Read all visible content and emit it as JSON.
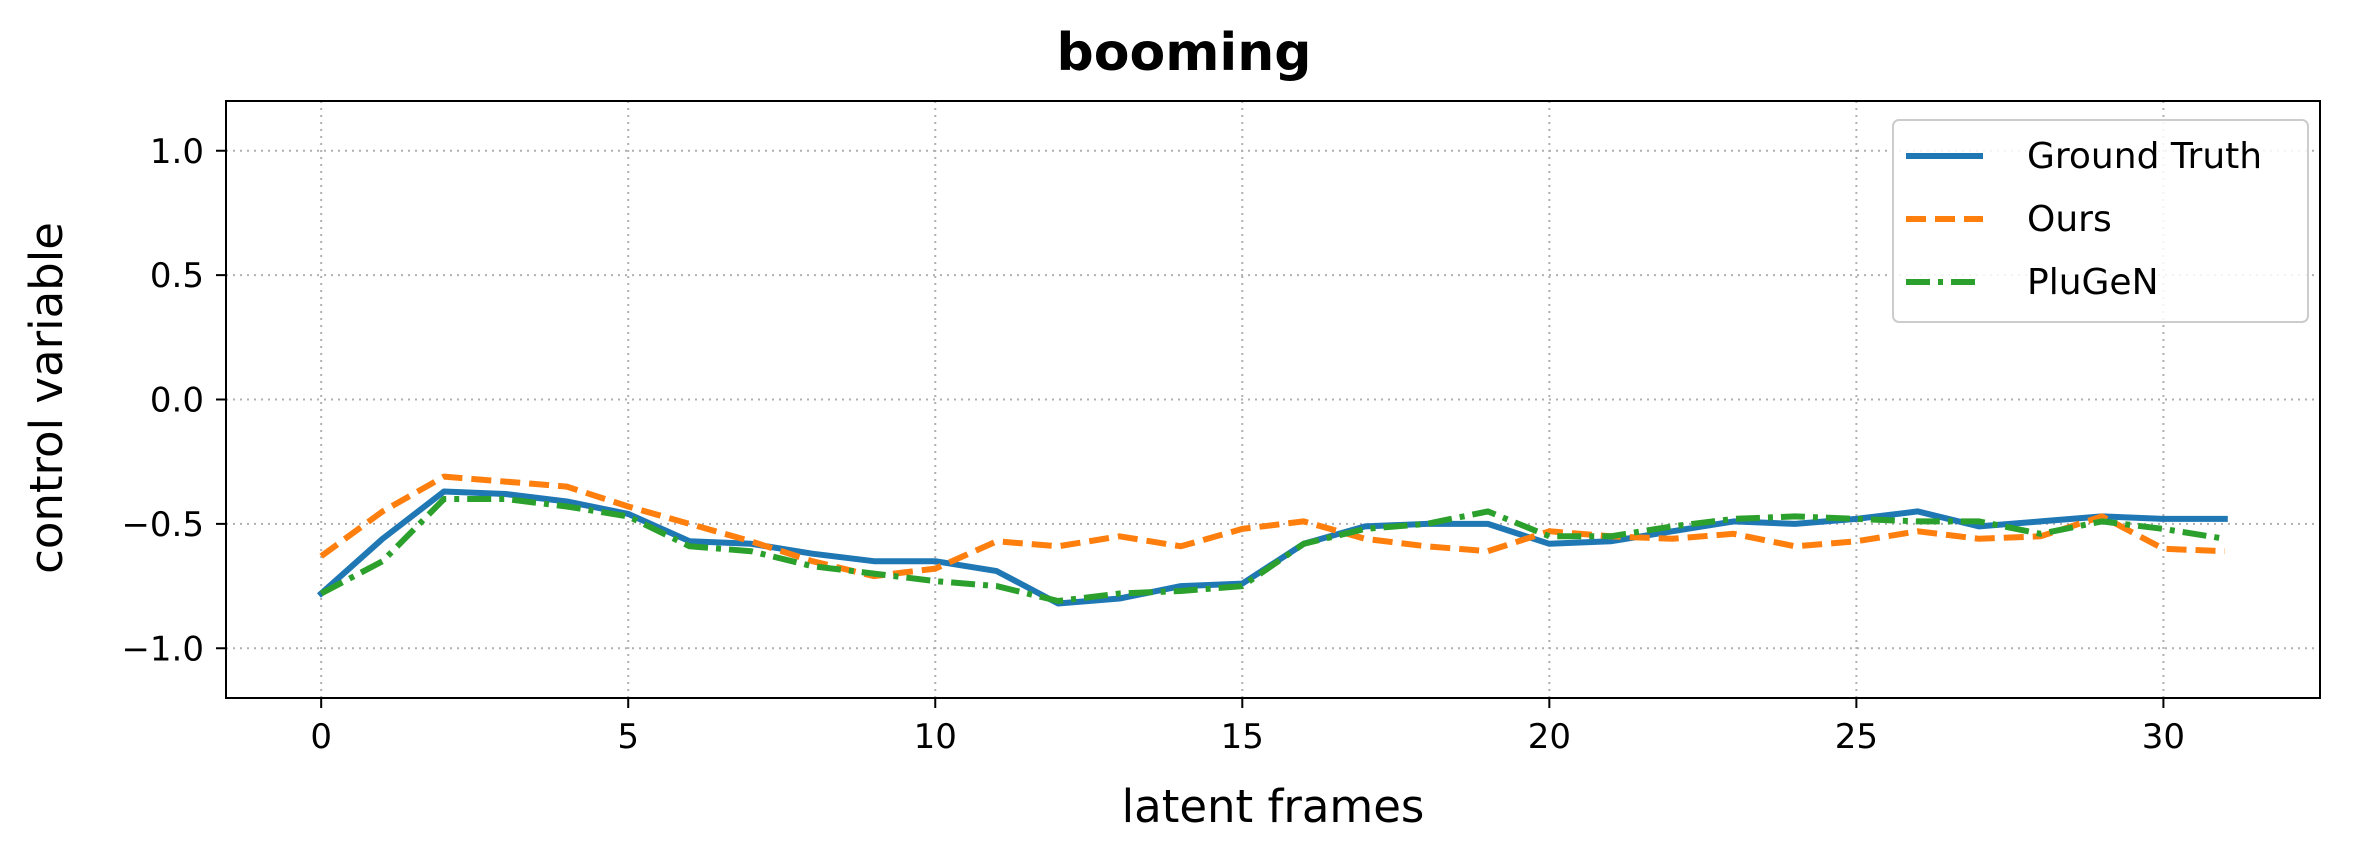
{
  "chart_data": {
    "type": "line",
    "title": "booming",
    "xlabel": "latent frames",
    "ylabel": "control variable",
    "xlim": [
      -1.55,
      32.55
    ],
    "ylim": [
      -1.2,
      1.2
    ],
    "xticks": [
      0,
      5,
      10,
      15,
      20,
      25,
      30
    ],
    "yticks": [
      1.0,
      0.5,
      0.0,
      -0.5,
      -1.0
    ],
    "ytick_labels": [
      "1.0",
      "0.5",
      "0.0",
      "−0.5",
      "−1.0"
    ],
    "grid": true,
    "legend_position": "top-right",
    "x": [
      0,
      1,
      2,
      3,
      4,
      5,
      6,
      7,
      8,
      9,
      10,
      11,
      12,
      13,
      14,
      15,
      16,
      17,
      18,
      19,
      20,
      21,
      22,
      23,
      24,
      25,
      26,
      27,
      28,
      29,
      30,
      31
    ],
    "series": [
      {
        "name": "Ground Truth",
        "color": "#1f77b4",
        "dash": "solid",
        "values": [
          -0.78,
          -0.56,
          -0.37,
          -0.38,
          -0.41,
          -0.46,
          -0.57,
          -0.58,
          -0.62,
          -0.65,
          -0.65,
          -0.69,
          -0.82,
          -0.8,
          -0.75,
          -0.74,
          -0.58,
          -0.51,
          -0.5,
          -0.5,
          -0.58,
          -0.57,
          -0.53,
          -0.49,
          -0.5,
          -0.48,
          -0.45,
          -0.51,
          -0.49,
          -0.47,
          -0.48,
          -0.48
        ]
      },
      {
        "name": "Ours",
        "color": "#ff7f0e",
        "dash": "dashed",
        "values": [
          -0.63,
          -0.45,
          -0.31,
          -0.33,
          -0.35,
          -0.43,
          -0.5,
          -0.57,
          -0.65,
          -0.71,
          -0.68,
          -0.57,
          -0.59,
          -0.55,
          -0.59,
          -0.52,
          -0.49,
          -0.56,
          -0.59,
          -0.61,
          -0.53,
          -0.55,
          -0.56,
          -0.54,
          -0.59,
          -0.57,
          -0.53,
          -0.56,
          -0.55,
          -0.47,
          -0.6,
          -0.61
        ]
      },
      {
        "name": "PluGeN",
        "color": "#2ca02c",
        "dash": "dashdot",
        "values": [
          -0.78,
          -0.65,
          -0.4,
          -0.4,
          -0.43,
          -0.47,
          -0.59,
          -0.61,
          -0.67,
          -0.7,
          -0.73,
          -0.75,
          -0.81,
          -0.78,
          -0.77,
          -0.75,
          -0.58,
          -0.52,
          -0.5,
          -0.45,
          -0.55,
          -0.55,
          -0.51,
          -0.48,
          -0.47,
          -0.48,
          -0.49,
          -0.49,
          -0.54,
          -0.49,
          -0.52,
          -0.56
        ]
      }
    ]
  }
}
